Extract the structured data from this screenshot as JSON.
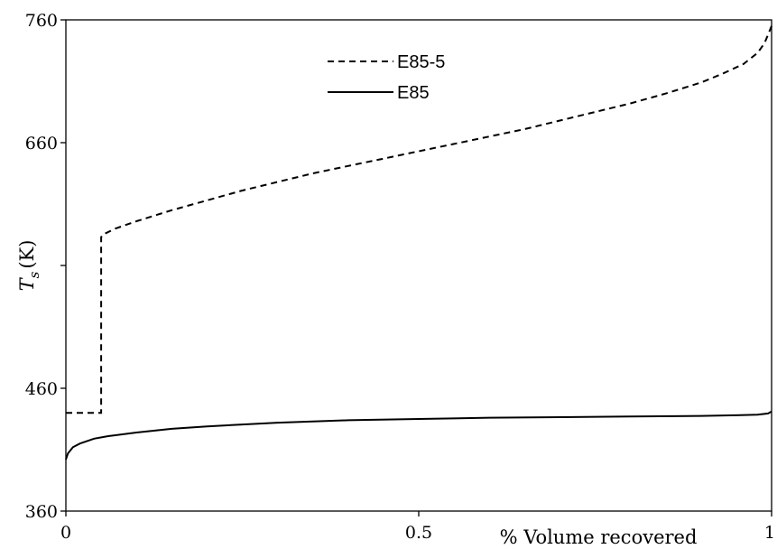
{
  "chart_data": {
    "type": "line",
    "xlabel": "% Volume recovered",
    "ylabel": "T_s (K)",
    "ylabel_main": "T",
    "ylabel_sub": "s",
    "ylabel_unit": "(K)",
    "xlim": [
      0,
      1
    ],
    "ylim": [
      360,
      760
    ],
    "x_ticks": [
      {
        "value": 0,
        "label": "0"
      },
      {
        "value": 0.5,
        "label": "0.5"
      },
      {
        "value": 1,
        "label": "1"
      }
    ],
    "y_ticks": [
      {
        "value": 360,
        "label": "360"
      },
      {
        "value": 460,
        "label": "460"
      },
      {
        "value": 560,
        "label": ""
      },
      {
        "value": 660,
        "label": "660"
      },
      {
        "value": 760,
        "label": "760"
      }
    ],
    "grid": false,
    "legend_position": "top-center",
    "series": [
      {
        "name": "E85-5",
        "style": "dashed",
        "color": "#000000",
        "x": [
          0,
          0.05,
          0.05,
          0.052,
          0.07,
          0.1,
          0.15,
          0.2,
          0.25,
          0.3,
          0.35,
          0.4,
          0.45,
          0.5,
          0.55,
          0.6,
          0.65,
          0.7,
          0.75,
          0.8,
          0.85,
          0.9,
          0.93,
          0.96,
          0.98,
          0.99,
          1.0
        ],
        "y": [
          440,
          440,
          583,
          585,
          590,
          596,
          605,
          613,
          621,
          628,
          635,
          641,
          647,
          653,
          659,
          665,
          671,
          678,
          685,
          692,
          700,
          709,
          716,
          724,
          733,
          741,
          755
        ]
      },
      {
        "name": "E85",
        "style": "solid",
        "color": "#000000",
        "x": [
          0,
          0.003,
          0.01,
          0.02,
          0.04,
          0.06,
          0.1,
          0.15,
          0.2,
          0.3,
          0.4,
          0.5,
          0.6,
          0.7,
          0.8,
          0.9,
          0.95,
          0.98,
          0.995,
          1.0
        ],
        "y": [
          402,
          407,
          412,
          415,
          419,
          421,
          424,
          427,
          429,
          432,
          434,
          435,
          436,
          436.5,
          437,
          437.5,
          438,
          438.5,
          439.5,
          441
        ]
      }
    ]
  }
}
